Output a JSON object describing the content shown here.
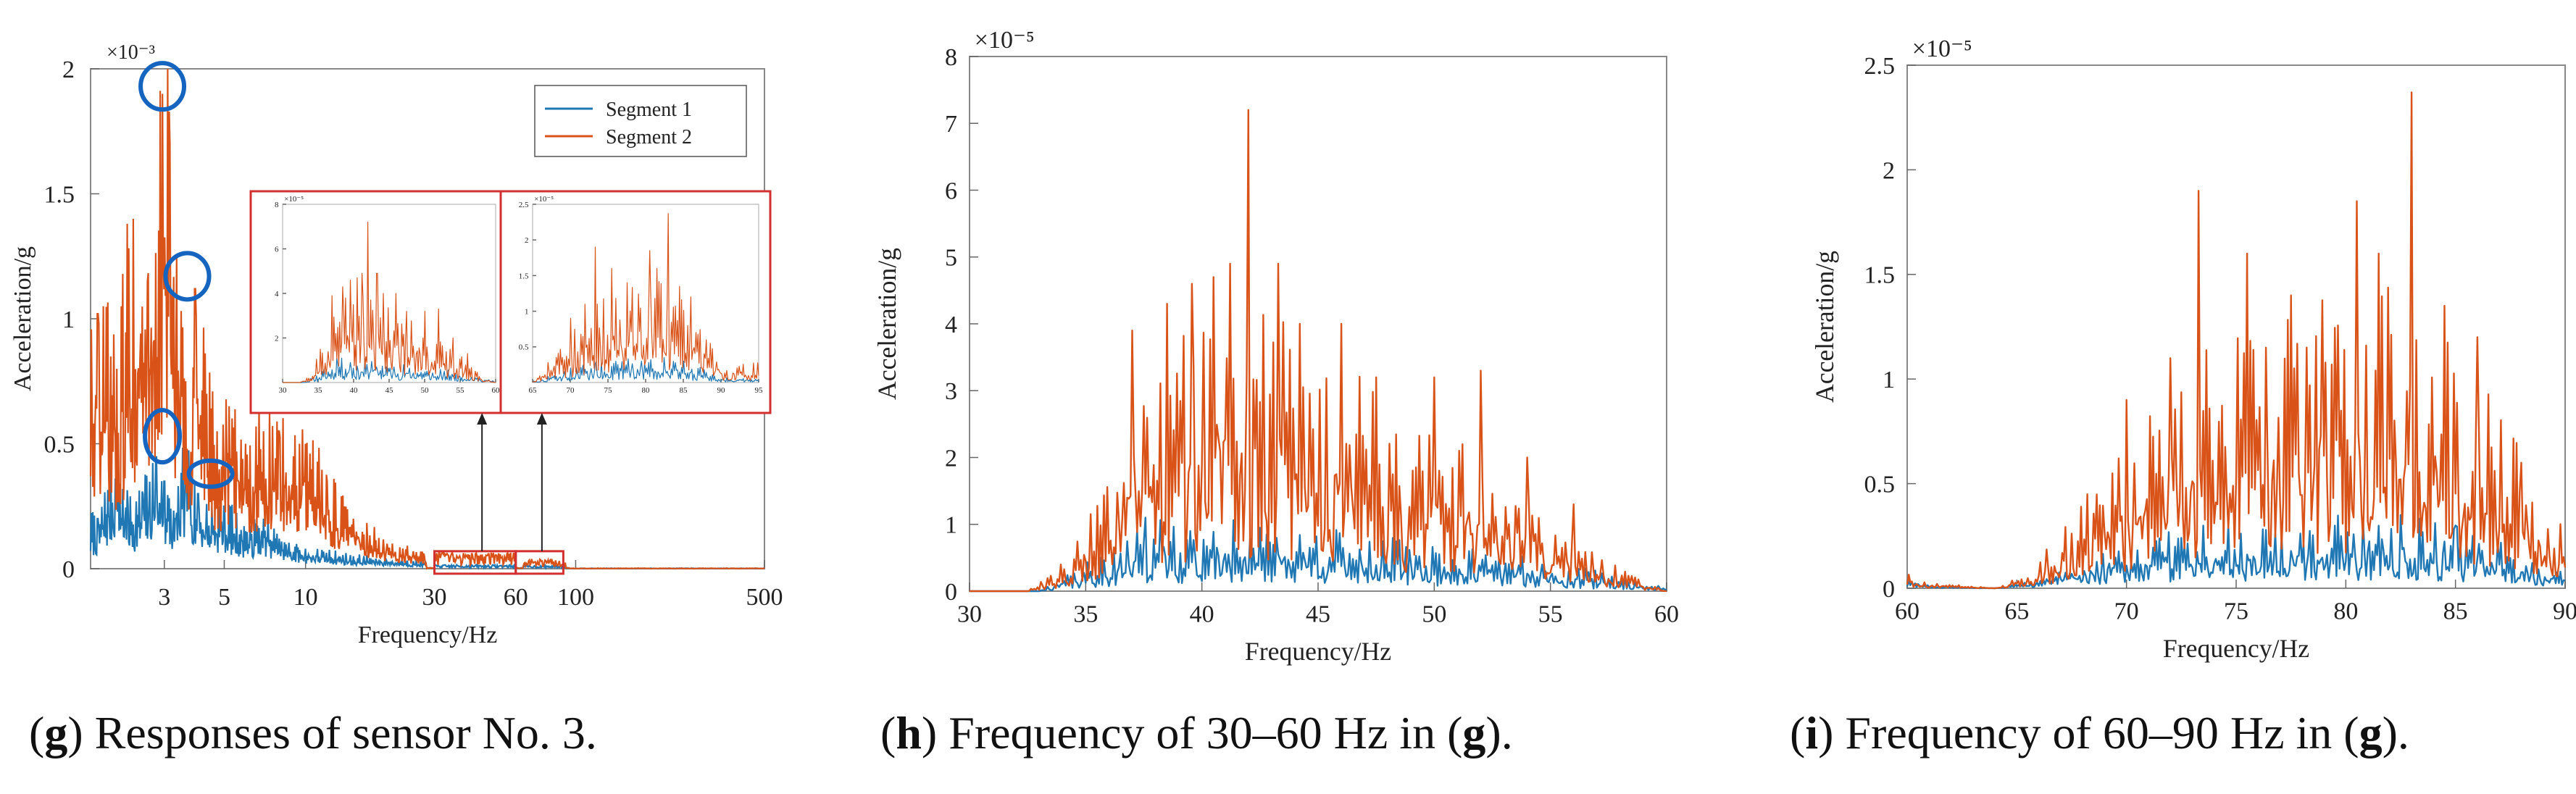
{
  "chart_data": [
    {
      "id": "g",
      "type": "line",
      "xscale": "log",
      "xlim": [
        1.6,
        500
      ],
      "ylim": [
        0,
        2
      ],
      "exponent_label": "×10⁻³",
      "xlabel": "Frequency/Hz",
      "ylabel": "Acceleration/g",
      "xtick_labels": [
        "3",
        "5",
        "10",
        "30",
        "60",
        "100",
        "500"
      ],
      "xticks": [
        3,
        5,
        10,
        30,
        60,
        100,
        500
      ],
      "yticks": [
        0,
        0.5,
        1,
        1.5,
        2
      ],
      "ytick_labels": [
        "0",
        "0.5",
        "1",
        "1.5",
        "2"
      ],
      "legend": {
        "position": "top-right",
        "entries": [
          "Segment 1",
          "Segment 2"
        ]
      },
      "series": [
        {
          "name": "Segment 1",
          "color": "#1f77b4",
          "peaks": [
            [
              1.7,
              0.2
            ],
            [
              2.0,
              0.45
            ],
            [
              2.2,
              0.25
            ],
            [
              2.5,
              0.3
            ],
            [
              2.8,
              0.45
            ],
            [
              3.0,
              0.35
            ],
            [
              3.3,
              0.2
            ],
            [
              3.6,
              0.5
            ],
            [
              4.0,
              0.3
            ],
            [
              4.5,
              0.25
            ],
            [
              5.0,
              0.25
            ],
            [
              6,
              0.15
            ],
            [
              7,
              0.2
            ],
            [
              8,
              0.12
            ],
            [
              10,
              0.08
            ],
            [
              15,
              0.05
            ],
            [
              25,
              0.03
            ]
          ],
          "floor": 0.05
        },
        {
          "name": "Segment 2",
          "color": "#d95319",
          "peaks": [
            [
              1.7,
              1.02
            ],
            [
              2.0,
              0.8
            ],
            [
              2.3,
              1.4
            ],
            [
              2.6,
              1.15
            ],
            [
              2.95,
              1.9
            ],
            [
              3.15,
              1.7
            ],
            [
              3.6,
              0.75
            ],
            [
              3.9,
              1.12
            ],
            [
              4.3,
              0.7
            ],
            [
              4.7,
              0.55
            ],
            [
              5.2,
              0.65
            ],
            [
              6,
              0.5
            ],
            [
              7,
              0.55
            ],
            [
              8,
              0.55
            ],
            [
              9,
              0.45
            ],
            [
              10,
              0.5
            ],
            [
              12,
              0.35
            ],
            [
              15,
              0.2
            ],
            [
              20,
              0.1
            ],
            [
              25,
              0.07
            ]
          ],
          "floor": 0.15
        }
      ],
      "annotations": {
        "circles": [
          {
            "x": 2.95,
            "y": 1.93
          },
          {
            "x": 3.65,
            "y": 1.17
          },
          {
            "x": 2.95,
            "y": 0.53
          },
          {
            "x": 4.45,
            "y": 0.38
          }
        ],
        "highlight_ranges": [
          [
            30,
            60
          ],
          [
            60,
            90
          ]
        ]
      },
      "insets": [
        {
          "xlim": [
            30,
            60
          ],
          "ylim": [
            0,
            8
          ],
          "exponent_label": "×10⁻⁵",
          "xticks": [
            30,
            35,
            40,
            45,
            50,
            55,
            60
          ],
          "yticks": [
            2,
            4,
            6,
            8
          ]
        },
        {
          "xlim": [
            65,
            95
          ],
          "ylim": [
            0,
            2.5
          ],
          "exponent_label": "×10⁻⁵",
          "xticks": [
            65,
            70,
            75,
            80,
            85,
            90,
            95
          ],
          "yticks": [
            0.5,
            1,
            1.5,
            2,
            2.5
          ]
        }
      ]
    },
    {
      "id": "h",
      "type": "line",
      "xlim": [
        30,
        60
      ],
      "ylim": [
        0,
        8
      ],
      "exponent_label": "×10⁻⁵",
      "xlabel": "Frequency/Hz",
      "ylabel": "Acceleration/g",
      "xticks": [
        30,
        35,
        40,
        45,
        50,
        55,
        60
      ],
      "yticks": [
        0,
        1,
        2,
        3,
        4,
        5,
        6,
        7,
        8
      ],
      "series": [
        {
          "name": "Segment 1",
          "color": "#1f77b4",
          "envelope": [
            [
              30,
              0
            ],
            [
              33,
              0
            ],
            [
              35,
              0.3
            ],
            [
              38,
              0.8
            ],
            [
              40,
              0.7
            ],
            [
              42,
              0.8
            ],
            [
              45,
              0.7
            ],
            [
              50,
              0.5
            ],
            [
              55,
              0.35
            ],
            [
              58,
              0.15
            ],
            [
              60,
              0.05
            ]
          ],
          "spikes": [
            [
              37.6,
              1.1
            ],
            [
              39.5,
              0.9
            ],
            [
              42.5,
              0.95
            ]
          ]
        },
        {
          "name": "Segment 2",
          "color": "#d95319",
          "envelope": [
            [
              30,
              0
            ],
            [
              32.5,
              0
            ],
            [
              34,
              0.3
            ],
            [
              36,
              1.5
            ],
            [
              38,
              2.5
            ],
            [
              40,
              3.0
            ],
            [
              42,
              3.2
            ],
            [
              44,
              2.8
            ],
            [
              46,
              2.5
            ],
            [
              48,
              2.0
            ],
            [
              50,
              1.7
            ],
            [
              52,
              1.5
            ],
            [
              55,
              0.9
            ],
            [
              57,
              0.4
            ],
            [
              59,
              0.1
            ],
            [
              60,
              0
            ]
          ],
          "spikes": [
            [
              37,
              3.9
            ],
            [
              38.5,
              4.3
            ],
            [
              39.6,
              4.6
            ],
            [
              40.5,
              4.7
            ],
            [
              41.2,
              4.9
            ],
            [
              42,
              7.2
            ],
            [
              43.3,
              4.9
            ],
            [
              44.2,
              4.0
            ],
            [
              46,
              4.0
            ],
            [
              47.5,
              3.2
            ],
            [
              50,
              3.2
            ],
            [
              52,
              3.3
            ],
            [
              54,
              2.0
            ],
            [
              56,
              1.3
            ]
          ]
        }
      ]
    },
    {
      "id": "i",
      "type": "line",
      "xlim": [
        60,
        90
      ],
      "ylim": [
        0,
        2.5
      ],
      "exponent_label": "×10⁻⁵",
      "xlabel": "Frequency/Hz",
      "ylabel": "Acceleration/g",
      "xticks": [
        60,
        65,
        70,
        75,
        80,
        85,
        90
      ],
      "yticks": [
        0,
        0.5,
        1,
        1.5,
        2,
        2.5
      ],
      "series": [
        {
          "name": "Segment 1",
          "color": "#1f77b4",
          "envelope": [
            [
              60,
              0.03
            ],
            [
              61,
              0.01
            ],
            [
              64,
              0
            ],
            [
              66,
              0.03
            ],
            [
              68,
              0.1
            ],
            [
              70,
              0.15
            ],
            [
              72,
              0.2
            ],
            [
              75,
              0.22
            ],
            [
              78,
              0.25
            ],
            [
              80,
              0.25
            ],
            [
              83,
              0.25
            ],
            [
              86,
              0.2
            ],
            [
              88,
              0.12
            ],
            [
              90,
              0.05
            ]
          ],
          "spikes": [
            [
              73.5,
              0.3
            ],
            [
              79.5,
              0.3
            ],
            [
              82.5,
              0.35
            ],
            [
              85,
              0.3
            ]
          ]
        },
        {
          "name": "Segment 2",
          "color": "#d95319",
          "envelope": [
            [
              60,
              0.05
            ],
            [
              61,
              0.02
            ],
            [
              64,
              0
            ],
            [
              65.5,
              0.05
            ],
            [
              67,
              0.2
            ],
            [
              69,
              0.4
            ],
            [
              71,
              0.6
            ],
            [
              73,
              0.8
            ],
            [
              75,
              0.9
            ],
            [
              77,
              0.95
            ],
            [
              79,
              1.0
            ],
            [
              81,
              1.05
            ],
            [
              83,
              1.0
            ],
            [
              85,
              0.85
            ],
            [
              87,
              0.6
            ],
            [
              89,
              0.35
            ],
            [
              90,
              0.2
            ]
          ],
          "spikes": [
            [
              70,
              0.9
            ],
            [
              72,
              1.1
            ],
            [
              73.3,
              1.9
            ],
            [
              75.5,
              1.6
            ],
            [
              77.5,
              1.4
            ],
            [
              80.5,
              1.85
            ],
            [
              81.5,
              1.6
            ],
            [
              83,
              2.37
            ],
            [
              84.5,
              1.35
            ],
            [
              86,
              1.2
            ],
            [
              88,
              0.6
            ]
          ]
        }
      ]
    }
  ],
  "captions": {
    "g": {
      "letter": "g",
      "text": "Responses of sensor No. 3."
    },
    "h": {
      "letter": "h",
      "text": "Frequency of 30–60 Hz in (",
      "ref": "g",
      "tail": ")."
    },
    "i": {
      "letter": "i",
      "text": "Frequency of 60–90 Hz in (",
      "ref": "g",
      "tail": ")."
    }
  },
  "colors": {
    "segment1": "#1f77b4",
    "segment2": "#d95319",
    "annotation": "#1565c0",
    "highlight": "#d32f2f"
  }
}
